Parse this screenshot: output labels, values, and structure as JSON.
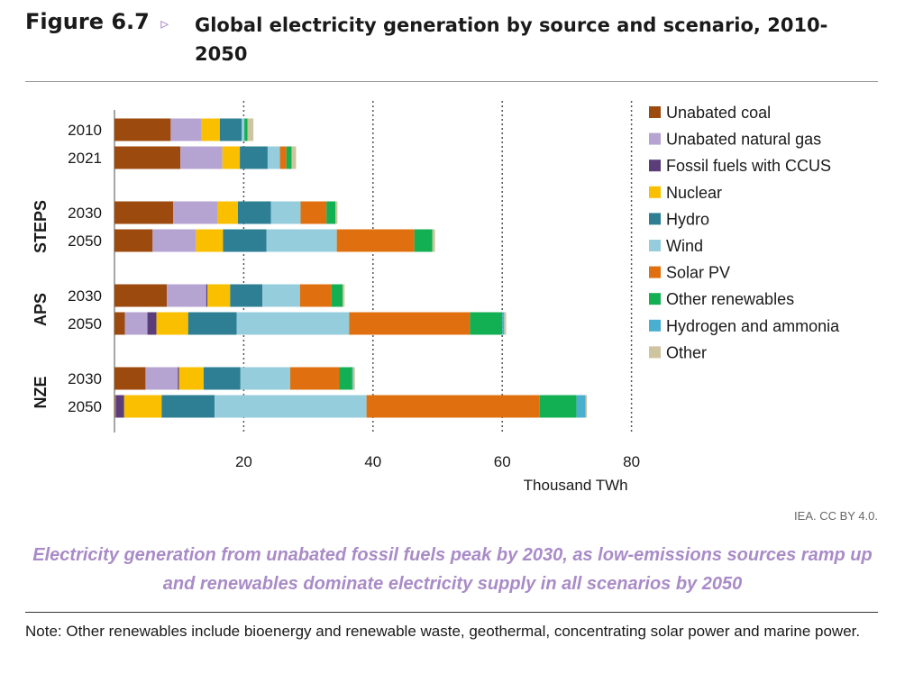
{
  "figure": {
    "label": "Figure 6.7",
    "arrow": "▹",
    "title": "Global electricity generation by source and scenario, 2010-2050"
  },
  "credit": "IEA. CC BY 4.0.",
  "caption": "Electricity generation from unabated fossil fuels peak by 2030, as low-emissions sources ramp up and renewables dominate electricity supply in all scenarios by 2050",
  "note": "Note: Other renewables include bioenergy and renewable waste, geothermal, concentrating solar power and marine power.",
  "chart_data": {
    "type": "bar",
    "orientation": "horizontal",
    "stacked": true,
    "title": "Global electricity generation by source and scenario, 2010-2050",
    "xlabel": "Thousand TWh",
    "xlim": [
      0,
      80
    ],
    "xticks": [
      20,
      40,
      60,
      80
    ],
    "grid": "vertical dotted",
    "legend_position": "right",
    "groups": [
      {
        "label": "",
        "categories": [
          "2010",
          "2021"
        ]
      },
      {
        "label": "STEPS",
        "categories": [
          "2030",
          "2050"
        ]
      },
      {
        "label": "APS",
        "categories": [
          "2030",
          "2050"
        ]
      },
      {
        "label": "NZE",
        "categories": [
          "2030",
          "2050"
        ]
      }
    ],
    "categories": [
      "2010",
      "2021",
      "STEPS 2030",
      "STEPS 2050",
      "APS 2030",
      "APS 2050",
      "NZE 2030",
      "NZE 2050"
    ],
    "series": [
      {
        "name": "Unabated coal",
        "color": "#9c4a0d",
        "values": [
          8.7,
          10.2,
          9.1,
          5.9,
          8.1,
          1.6,
          4.8,
          0.1
        ]
      },
      {
        "name": "Unabated natural gas",
        "color": "#b5a3d2",
        "values": [
          4.8,
          6.5,
          6.8,
          6.7,
          6.1,
          3.5,
          5.0,
          0.1
        ]
      },
      {
        "name": "Fossil fuels with CCUS",
        "color": "#5b3d7a",
        "values": [
          0.0,
          0.0,
          0.0,
          0.0,
          0.2,
          1.4,
          0.2,
          1.3
        ]
      },
      {
        "name": "Nuclear",
        "color": "#fac000",
        "values": [
          2.8,
          2.7,
          3.2,
          4.2,
          3.5,
          4.9,
          3.8,
          5.8
        ]
      },
      {
        "name": "Hydro",
        "color": "#2e7f94",
        "values": [
          3.4,
          4.3,
          5.1,
          6.7,
          5.0,
          7.5,
          5.7,
          8.2
        ]
      },
      {
        "name": "Wind",
        "color": "#96cddc",
        "values": [
          0.4,
          1.9,
          4.6,
          10.9,
          5.8,
          17.4,
          7.7,
          23.5
        ]
      },
      {
        "name": "Solar PV",
        "color": "#e0700f",
        "values": [
          0.0,
          1.0,
          4.0,
          12.0,
          4.9,
          18.7,
          7.6,
          26.8
        ]
      },
      {
        "name": "Other renewables",
        "color": "#13af53",
        "values": [
          0.5,
          0.8,
          1.4,
          2.8,
          1.7,
          5.0,
          2.0,
          5.7
        ]
      },
      {
        "name": "Hydrogen and ammonia",
        "color": "#4aaed0",
        "values": [
          0.0,
          0.0,
          0.0,
          0.0,
          0.0,
          0.3,
          0.1,
          1.4
        ]
      },
      {
        "name": "Other",
        "color": "#cfc4a0",
        "values": [
          0.9,
          0.7,
          0.3,
          0.4,
          0.3,
          0.3,
          0.3,
          0.2
        ]
      }
    ]
  }
}
